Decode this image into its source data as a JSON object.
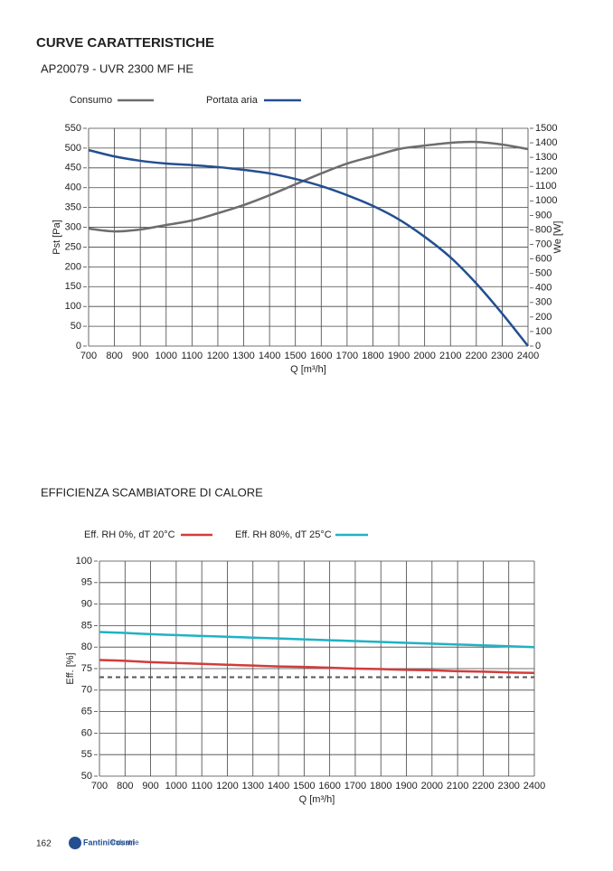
{
  "header": {
    "title": "CURVE CARATTERISTICHE"
  },
  "footer": {
    "page": "162",
    "logo": "FantiniCosmi",
    "logo_sub": "Industrie"
  },
  "chart_data": [
    {
      "type": "line",
      "title": "AP20079 - UVR 2300 MF HE",
      "x": [
        700,
        800,
        900,
        1000,
        1100,
        1200,
        1300,
        1400,
        1500,
        1600,
        1700,
        1800,
        1900,
        2000,
        2100,
        2200,
        2300,
        2400
      ],
      "xlim": [
        700,
        2400
      ],
      "xticks": [
        700,
        800,
        900,
        1000,
        1100,
        1200,
        1300,
        1400,
        1500,
        1600,
        1700,
        1800,
        1900,
        2000,
        2100,
        2200,
        2300,
        2400
      ],
      "xlabel": "Q [m³/h]",
      "ylabel": "Pst [Pa]",
      "y2label": "We [W]",
      "ylim": [
        0,
        550
      ],
      "yticks": [
        0,
        50,
        100,
        150,
        200,
        250,
        300,
        350,
        400,
        450,
        500,
        550
      ],
      "y2lim": [
        0,
        1500
      ],
      "y2ticks": [
        0,
        100,
        200,
        300,
        400,
        500,
        600,
        700,
        800,
        900,
        1000,
        1100,
        1200,
        1300,
        1400,
        1500
      ],
      "grid": true,
      "series": [
        {
          "name": "Consumo",
          "color": "#6d6d6d",
          "axis": "y2",
          "values": [
            809,
            790,
            803,
            834,
            865,
            915,
            971,
            1039,
            1114,
            1189,
            1257,
            1307,
            1357,
            1381,
            1400,
            1406,
            1388,
            1357
          ]
        },
        {
          "name": "Portata aria",
          "color": "#234f91",
          "values": [
            495,
            479,
            468,
            461,
            457,
            452,
            445,
            436,
            422,
            404,
            381,
            354,
            320,
            276,
            224,
            158,
            82,
            0
          ]
        }
      ]
    },
    {
      "type": "line",
      "title": "EFFICIENZA SCAMBIATORE DI CALORE",
      "x": [
        700,
        800,
        900,
        1000,
        1100,
        1200,
        1300,
        1400,
        1500,
        1600,
        1700,
        1800,
        1900,
        2000,
        2100,
        2200,
        2300,
        2400
      ],
      "xlim": [
        700,
        2400
      ],
      "xticks": [
        700,
        800,
        900,
        1000,
        1100,
        1200,
        1300,
        1400,
        1500,
        1600,
        1700,
        1800,
        1900,
        2000,
        2100,
        2200,
        2300,
        2400
      ],
      "xlabel": "Q [m³/h]",
      "ylabel": "Eff. [%]",
      "ylim": [
        50,
        100
      ],
      "yticks": [
        50,
        55,
        60,
        65,
        70,
        75,
        80,
        85,
        90,
        95,
        100
      ],
      "grid": true,
      "hline": {
        "value": 73,
        "color": "#555555"
      },
      "series": [
        {
          "name": "Eff. RH 0%, dT 20°C",
          "color": "#d23c3c",
          "values": [
            77,
            76.8,
            76.5,
            76.3,
            76.1,
            75.9,
            75.7,
            75.5,
            75.4,
            75.2,
            75.0,
            74.9,
            74.7,
            74.6,
            74.4,
            74.3,
            74.1,
            74.0
          ]
        },
        {
          "name": "Eff. RH 80%, dT 25°C",
          "color": "#1fb2c4",
          "values": [
            83.5,
            83.3,
            83.0,
            82.8,
            82.6,
            82.4,
            82.2,
            82.0,
            81.8,
            81.6,
            81.4,
            81.2,
            81.0,
            80.8,
            80.6,
            80.4,
            80.2,
            80.0
          ]
        }
      ]
    }
  ]
}
